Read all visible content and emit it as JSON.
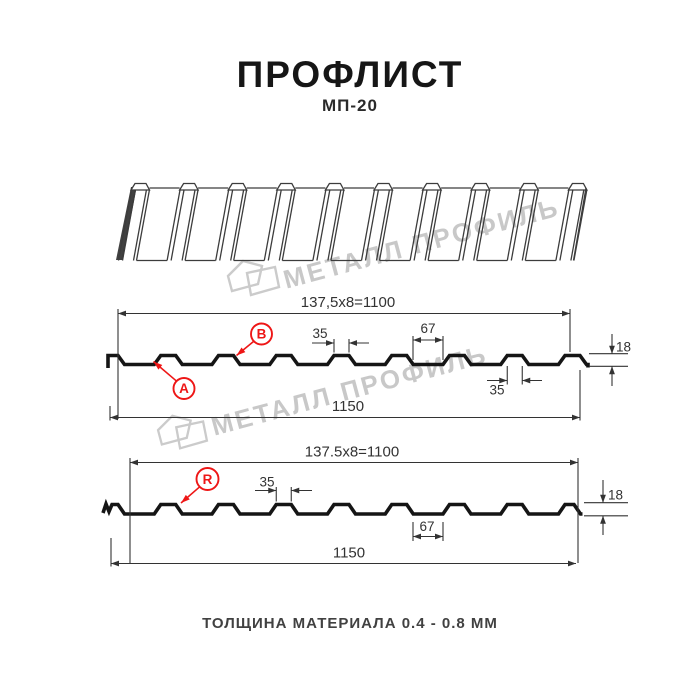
{
  "header": {
    "title": "ПРОФЛИСТ",
    "subtitle": "МП-20"
  },
  "watermark": {
    "text": "МЕТАЛЛ ПРОФИЛЬ",
    "logo": "metall-profil-logo"
  },
  "footer": {
    "text": "ТОЛЩИНА МАТЕРИАЛА 0.4 - 0.8 ММ"
  },
  "colors": {
    "accent_red": "#ee1616",
    "line_black": "#161616",
    "dimension_gray": "#333333",
    "watermark_gray": "#c8c8c8"
  },
  "profile1": {
    "pitch_label": "137,5x8=1100",
    "rib_top_width": "35",
    "valley_width": "67",
    "height": "18",
    "rib_bottom_width": "35",
    "total_width": "1150",
    "label_a": "A",
    "label_b": "B"
  },
  "profile2": {
    "pitch_label": "137.5x8=1100",
    "rib_top_width": "35",
    "valley_width": "67",
    "height": "18",
    "total_width": "1150",
    "label_r": "R"
  }
}
